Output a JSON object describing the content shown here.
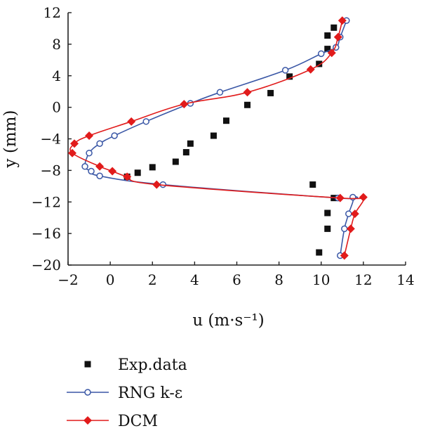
{
  "chart_data": {
    "type": "scatter",
    "xlabel": "u (m·s⁻¹)",
    "ylabel": "y (mm)",
    "xlim": [
      -2,
      14
    ],
    "ylim": [
      -20,
      12
    ],
    "xticks": [
      "−2",
      "0",
      "2",
      "4",
      "6",
      "8",
      "10",
      "12",
      "14"
    ],
    "yticks": [
      "12",
      "8",
      "4",
      "0",
      "−4",
      "−8",
      "−12",
      "−16",
      "−20"
    ],
    "grid": false,
    "legend_position": "bottom-left",
    "series": [
      {
        "name": "Exp.data",
        "style": "markers",
        "marker": "square",
        "color": "#111111",
        "points": [
          [
            10.6,
            10.1
          ],
          [
            10.3,
            9.1
          ],
          [
            10.3,
            7.4
          ],
          [
            9.9,
            5.5
          ],
          [
            8.5,
            3.9
          ],
          [
            7.6,
            1.8
          ],
          [
            6.5,
            0.3
          ],
          [
            5.5,
            -1.7
          ],
          [
            4.9,
            -3.6
          ],
          [
            3.8,
            -4.6
          ],
          [
            3.6,
            -5.7
          ],
          [
            3.1,
            -6.9
          ],
          [
            2.0,
            -7.6
          ],
          [
            1.3,
            -8.3
          ],
          [
            0.8,
            -8.8
          ],
          [
            9.6,
            -9.8
          ],
          [
            10.6,
            -11.5
          ],
          [
            10.3,
            -13.4
          ],
          [
            10.3,
            -15.4
          ],
          [
            9.9,
            -18.4
          ]
        ]
      },
      {
        "name": "RNG k-ε",
        "style": "line+markers",
        "marker": "open-circle",
        "color": "#3a57a6",
        "points": [
          [
            11.2,
            11.0
          ],
          [
            10.9,
            8.9
          ],
          [
            10.7,
            7.6
          ],
          [
            10.0,
            6.8
          ],
          [
            8.3,
            4.7
          ],
          [
            5.2,
            1.9
          ],
          [
            3.8,
            0.5
          ],
          [
            1.7,
            -1.8
          ],
          [
            0.2,
            -3.6
          ],
          [
            -0.5,
            -4.6
          ],
          [
            -1.0,
            -5.8
          ],
          [
            -1.2,
            -7.5
          ],
          [
            -0.9,
            -8.1
          ],
          [
            -0.5,
            -8.7
          ],
          [
            2.5,
            -9.8
          ],
          [
            10.8,
            -11.5
          ],
          [
            11.5,
            -11.4
          ],
          [
            11.3,
            -13.5
          ],
          [
            11.1,
            -15.4
          ],
          [
            10.9,
            -18.8
          ]
        ]
      },
      {
        "name": "DCM",
        "style": "line+markers",
        "marker": "filled-diamond",
        "color": "#e11b1b",
        "points": [
          [
            11.0,
            11.0
          ],
          [
            10.8,
            8.9
          ],
          [
            10.5,
            6.9
          ],
          [
            9.5,
            4.8
          ],
          [
            6.5,
            1.9
          ],
          [
            3.5,
            0.4
          ],
          [
            1.0,
            -1.8
          ],
          [
            -1.0,
            -3.6
          ],
          [
            -1.7,
            -4.6
          ],
          [
            -1.8,
            -5.8
          ],
          [
            -0.5,
            -7.5
          ],
          [
            0.1,
            -8.1
          ],
          [
            0.8,
            -8.8
          ],
          [
            2.2,
            -9.8
          ],
          [
            10.9,
            -11.5
          ],
          [
            12.0,
            -11.4
          ],
          [
            11.6,
            -13.5
          ],
          [
            11.4,
            -15.4
          ],
          [
            11.1,
            -18.8
          ]
        ]
      }
    ]
  }
}
